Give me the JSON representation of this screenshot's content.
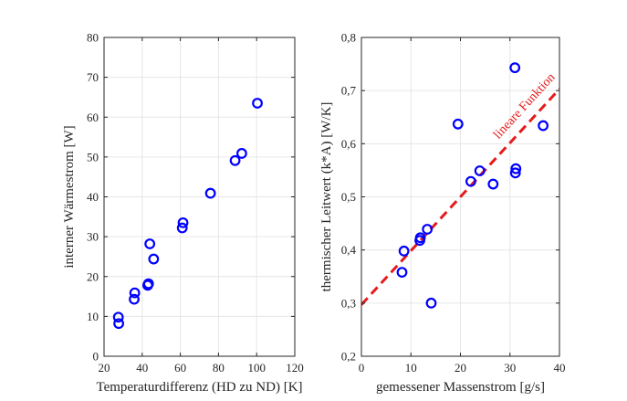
{
  "chart_data": [
    {
      "type": "scatter",
      "xlabel": "Temperaturdifferenz (HD zu ND) [K]",
      "ylabel": "interner Wärmestrom [W]",
      "xlim": [
        20,
        120
      ],
      "ylim": [
        0,
        80
      ],
      "xticks": [
        "20",
        "40",
        "60",
        "80",
        "100",
        "120"
      ],
      "yticks": [
        "0",
        "10",
        "20",
        "30",
        "40",
        "50",
        "60",
        "70",
        "80"
      ],
      "grid": true,
      "marker_color": "#0000ff",
      "points": [
        {
          "x": 27.5,
          "y": 9.8
        },
        {
          "x": 27.7,
          "y": 8.2
        },
        {
          "x": 35.8,
          "y": 14.3
        },
        {
          "x": 36.1,
          "y": 15.9
        },
        {
          "x": 42.9,
          "y": 17.8
        },
        {
          "x": 43.3,
          "y": 18.2
        },
        {
          "x": 44.0,
          "y": 28.2
        },
        {
          "x": 46.0,
          "y": 24.4
        },
        {
          "x": 61.0,
          "y": 32.2
        },
        {
          "x": 61.4,
          "y": 33.5
        },
        {
          "x": 75.8,
          "y": 40.9
        },
        {
          "x": 88.7,
          "y": 49.1
        },
        {
          "x": 92.2,
          "y": 50.9
        },
        {
          "x": 100.4,
          "y": 63.5
        }
      ]
    },
    {
      "type": "scatter",
      "xlabel": "gemessener Massenstrom [g/s]",
      "ylabel": "thermischer Leitwert (k*A) [W/K]",
      "xlim": [
        0,
        40
      ],
      "ylim": [
        0.2,
        0.8
      ],
      "xticks": [
        "0",
        "10",
        "20",
        "30",
        "40"
      ],
      "yticks": [
        "0,2",
        "0,3",
        "0,4",
        "0,5",
        "0,6",
        "0,7",
        "0,8"
      ],
      "grid": true,
      "marker_color": "#0000ff",
      "points": [
        {
          "x": 8.2,
          "y": 0.358
        },
        {
          "x": 8.6,
          "y": 0.398
        },
        {
          "x": 11.8,
          "y": 0.418
        },
        {
          "x": 11.9,
          "y": 0.423
        },
        {
          "x": 13.3,
          "y": 0.439
        },
        {
          "x": 14.1,
          "y": 0.3
        },
        {
          "x": 19.5,
          "y": 0.637
        },
        {
          "x": 22.1,
          "y": 0.529
        },
        {
          "x": 23.9,
          "y": 0.549
        },
        {
          "x": 26.6,
          "y": 0.524
        },
        {
          "x": 31.0,
          "y": 0.743
        },
        {
          "x": 31.1,
          "y": 0.545
        },
        {
          "x": 31.2,
          "y": 0.553
        },
        {
          "x": 36.7,
          "y": 0.634
        }
      ],
      "trendline": {
        "label": "lineare Funktion",
        "color": "#e41a1c",
        "style": "dashed",
        "x": [
          0,
          40
        ],
        "y": [
          0.297,
          0.703
        ]
      }
    }
  ]
}
